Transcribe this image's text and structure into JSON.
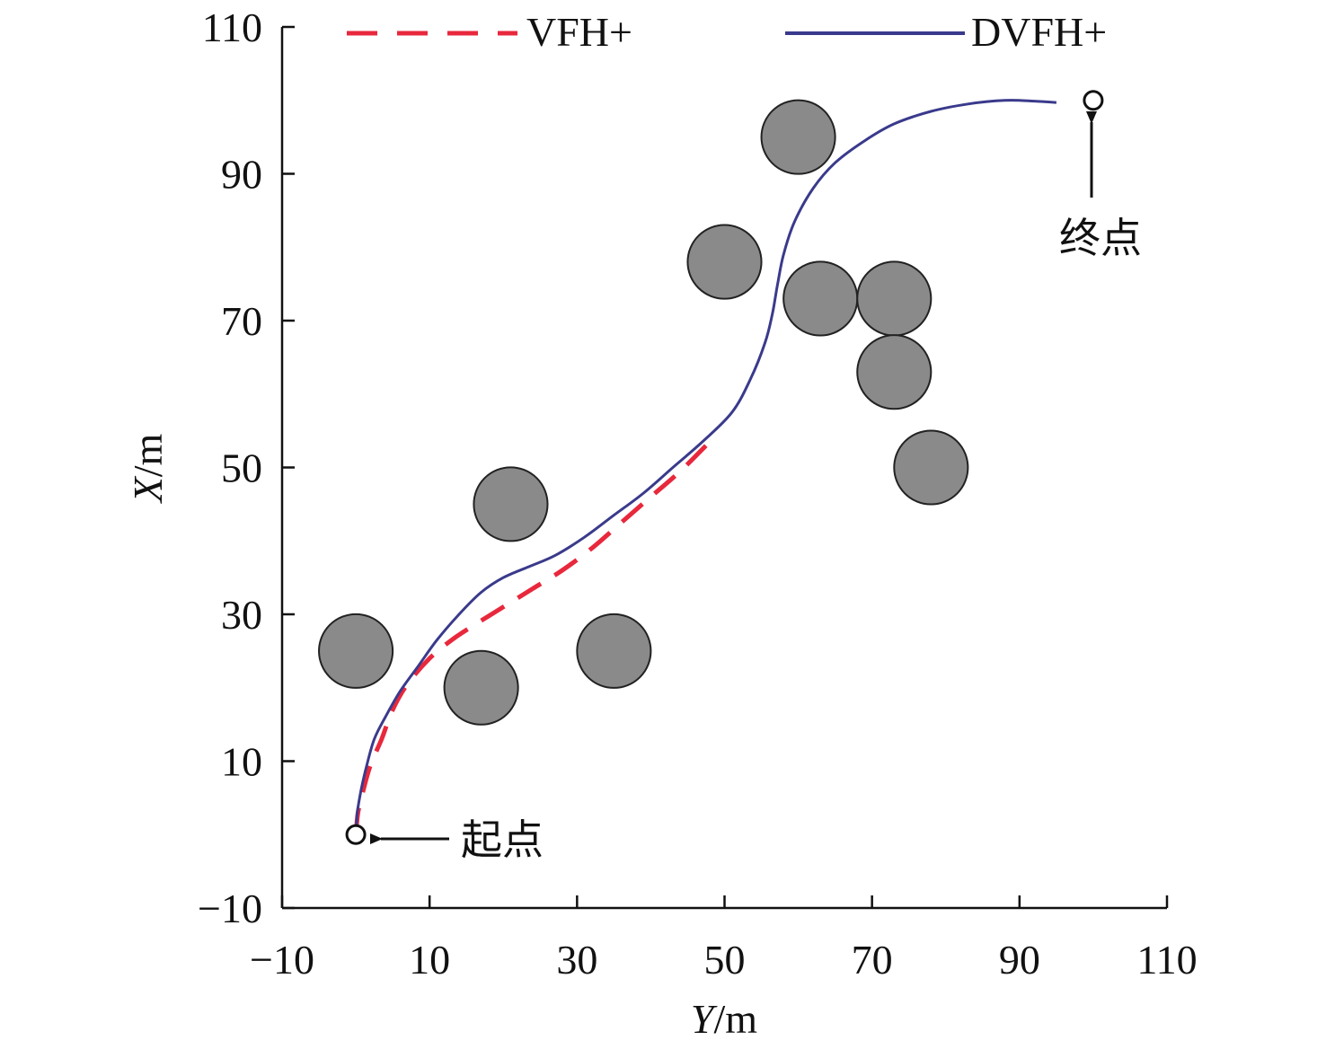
{
  "chart_data": {
    "type": "scatter",
    "xlabel": {
      "var": "Y",
      "unit": "/m"
    },
    "ylabel": {
      "var": "X",
      "unit": "/m"
    },
    "xlim": [
      -10,
      110
    ],
    "ylim": [
      -10,
      110
    ],
    "xticks": [
      -10,
      10,
      30,
      50,
      70,
      90,
      110
    ],
    "yticks": [
      -10,
      10,
      30,
      50,
      70,
      90,
      110
    ],
    "xtick_labels": [
      "−10",
      "10",
      "30",
      "50",
      "70",
      "90",
      "110"
    ],
    "ytick_labels": [
      "−10",
      "10",
      "30",
      "50",
      "70",
      "90",
      "110"
    ],
    "grid": false,
    "legend_position": "top",
    "series": [
      {
        "name": "VFH+",
        "style": "dashed",
        "color": "#e8283c",
        "points": [
          [
            0,
            0
          ],
          [
            0.3,
            3
          ],
          [
            1,
            6
          ],
          [
            2,
            9.5
          ],
          [
            3.5,
            13
          ],
          [
            5,
            17
          ],
          [
            7,
            20.5
          ],
          [
            10,
            24
          ],
          [
            13,
            26.5
          ],
          [
            16,
            28.5
          ],
          [
            20,
            31
          ],
          [
            24,
            33.5
          ],
          [
            28,
            36
          ],
          [
            32,
            39
          ],
          [
            36,
            42.5
          ],
          [
            40,
            46
          ],
          [
            44,
            49.5
          ],
          [
            48,
            53.5
          ]
        ]
      },
      {
        "name": "DVFH+",
        "style": "solid",
        "color": "#3a3a8c",
        "points": [
          [
            0,
            0
          ],
          [
            0.2,
            3
          ],
          [
            0.7,
            6
          ],
          [
            1.5,
            9.5
          ],
          [
            2.5,
            13
          ],
          [
            4,
            16
          ],
          [
            6,
            19.5
          ],
          [
            8.5,
            23
          ],
          [
            11,
            26.5
          ],
          [
            14,
            30
          ],
          [
            17,
            33
          ],
          [
            20,
            35
          ],
          [
            23.5,
            36.5
          ],
          [
            27,
            38
          ],
          [
            31,
            40.5
          ],
          [
            35,
            43.5
          ],
          [
            39,
            46.5
          ],
          [
            43,
            50
          ],
          [
            47,
            53.5
          ],
          [
            51,
            57.5
          ],
          [
            53.5,
            62
          ],
          [
            55.5,
            67
          ],
          [
            56.5,
            71
          ],
          [
            57.2,
            75
          ],
          [
            58,
            79
          ],
          [
            59.5,
            83.5
          ],
          [
            62,
            88
          ],
          [
            65,
            91.5
          ],
          [
            69,
            94.5
          ],
          [
            73,
            96.8
          ],
          [
            78,
            98.5
          ],
          [
            83,
            99.5
          ],
          [
            88,
            100
          ],
          [
            92,
            99.9
          ],
          [
            95,
            99.7
          ]
        ]
      }
    ],
    "obstacles": [
      [
        0,
        25
      ],
      [
        17,
        20
      ],
      [
        21,
        45
      ],
      [
        35,
        25
      ],
      [
        50,
        78
      ],
      [
        60,
        95
      ],
      [
        63,
        73
      ],
      [
        73,
        73
      ],
      [
        73,
        63
      ],
      [
        78,
        50
      ]
    ],
    "obstacle_radius": 5,
    "obstacle_color": "#8a8a8a",
    "start": [
      0,
      0
    ],
    "goal": [
      100,
      100
    ],
    "annotations": {
      "start_label": "起点",
      "goal_label": "终点"
    }
  }
}
